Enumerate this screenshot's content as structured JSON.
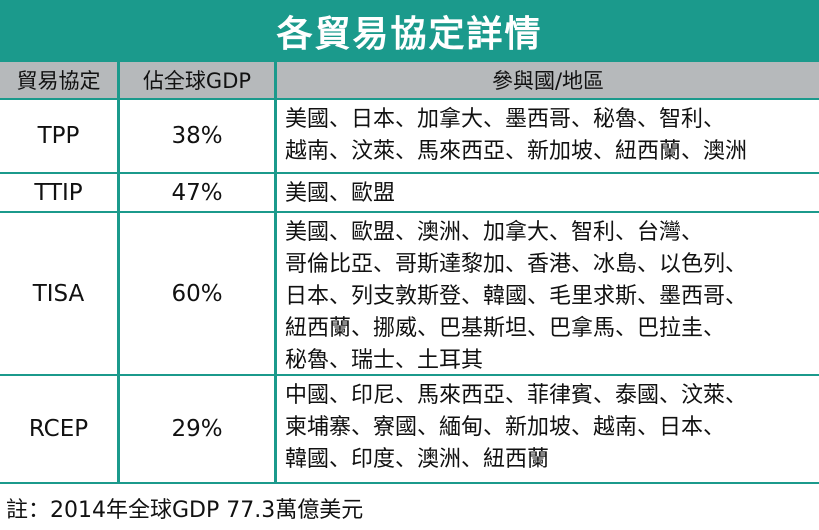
{
  "title": "各貿易協定詳情",
  "headers": [
    "貿易協定",
    "佔全球GDP",
    "參與國/地區"
  ],
  "rows": [
    {
      "agreement": "TPP",
      "gdp_share": "38%",
      "members": "美國、日本、加拿大、墨西哥、秘魯、智利、\n越南、汶萊、馬來西亞、新加坡、紐西蘭、澳洲"
    },
    {
      "agreement": "TTIP",
      "gdp_share": "47%",
      "members": "美國、歐盟"
    },
    {
      "agreement": "TISA",
      "gdp_share": "60%",
      "members": "美國、歐盟、澳洲、加拿大、智利、台灣、\n哥倫比亞、哥斯達黎加、香港、冰島、以色列、\n日本、列支敦斯登、韓國、毛里求斯、墨西哥、\n紐西蘭、挪威、巴基斯坦、巴拿馬、巴拉圭、\n秘魯、瑞士、土耳其"
    },
    {
      "agreement": "RCEP",
      "gdp_share": "29%",
      "members": "中國、印尼、馬來西亞、菲律賓、泰國、汶萊、\n柬埔寨、寮國、緬甸、新加坡、越南、日本、\n韓國、印度、澳洲、紐西蘭"
    }
  ],
  "note": "註：2014年全球GDP 77.3萬億美元",
  "colors": {
    "accent": "#1b9a8c",
    "header_bg": "#b6b9bb"
  }
}
